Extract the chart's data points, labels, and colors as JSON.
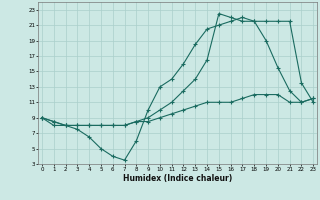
{
  "xlabel": "Humidex (Indice chaleur)",
  "bg_color": "#cce8e4",
  "grid_color": "#aacfcb",
  "line_color": "#1a6b60",
  "xlim": [
    0,
    23
  ],
  "ylim": [
    3,
    24
  ],
  "xticks": [
    0,
    1,
    2,
    3,
    4,
    5,
    6,
    7,
    8,
    9,
    10,
    11,
    12,
    13,
    14,
    15,
    16,
    17,
    18,
    19,
    20,
    21,
    22,
    23
  ],
  "yticks": [
    3,
    5,
    7,
    9,
    11,
    13,
    15,
    17,
    19,
    21,
    23
  ],
  "line1_x": [
    0,
    1,
    2,
    3,
    4,
    5,
    6,
    7,
    8,
    9,
    10,
    11,
    12,
    13,
    14,
    15,
    16,
    17,
    18,
    19,
    20,
    21,
    22,
    23
  ],
  "line1_y": [
    9,
    8,
    8,
    7.5,
    6.5,
    5,
    4,
    3.5,
    6,
    10,
    13,
    14,
    16,
    18.5,
    20.5,
    21,
    21.5,
    22,
    21.5,
    19,
    15.5,
    12.5,
    11,
    11.5
  ],
  "line2_x": [
    0,
    1,
    2,
    3,
    4,
    5,
    6,
    7,
    8,
    9,
    10,
    11,
    12,
    13,
    14,
    15,
    16,
    17,
    18,
    19,
    20,
    21,
    22,
    23
  ],
  "line2_y": [
    9,
    8.5,
    8,
    8,
    8,
    8,
    8,
    8,
    8.5,
    8.5,
    9,
    9.5,
    10,
    10.5,
    11,
    11,
    11,
    11.5,
    12,
    12,
    12,
    11,
    11,
    11.5
  ],
  "line3_x": [
    0,
    1,
    2,
    3,
    4,
    5,
    6,
    7,
    8,
    9,
    10,
    11,
    12,
    13,
    14,
    15,
    16,
    17,
    18,
    19,
    20,
    21,
    22,
    23
  ],
  "line3_y": [
    9,
    8.5,
    8,
    8,
    8,
    8,
    8,
    8,
    8.5,
    9,
    10,
    11,
    12.5,
    14,
    16.5,
    22.5,
    22,
    21.5,
    21.5,
    21.5,
    21.5,
    21.5,
    13.5,
    11
  ]
}
